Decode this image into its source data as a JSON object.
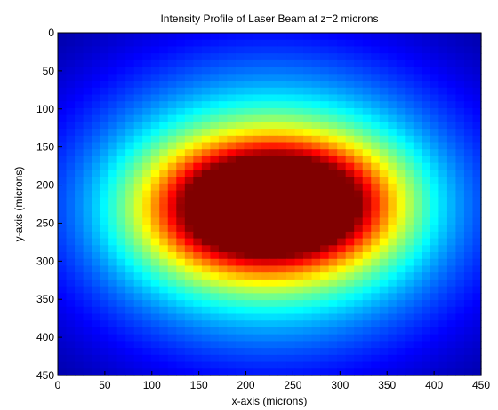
{
  "chart_data": {
    "type": "heatmap",
    "title": "Intensity Profile of Laser Beam at z=2 microns",
    "xlabel": "x-axis (microns)",
    "ylabel": "y-axis (microns)",
    "xlim": [
      0,
      450
    ],
    "ylim": [
      0,
      450
    ],
    "y_direction": "reversed",
    "xticks": [
      0,
      50,
      100,
      150,
      200,
      250,
      300,
      350,
      400,
      450
    ],
    "yticks": [
      0,
      50,
      100,
      150,
      200,
      250,
      300,
      350,
      400,
      450
    ],
    "colormap": "jet",
    "value_range": [
      0,
      1
    ],
    "grid": false,
    "colorbar": false,
    "background": {
      "x_width": 300,
      "y_width": 270
    },
    "peaks": [
      {
        "x": 185,
        "y": 230,
        "sigma_x": 70,
        "sigma_y": 58,
        "amplitude": 0.62
      },
      {
        "x": 270,
        "y": 225,
        "sigma_x": 68,
        "sigma_y": 56,
        "amplitude": 0.6
      }
    ]
  }
}
